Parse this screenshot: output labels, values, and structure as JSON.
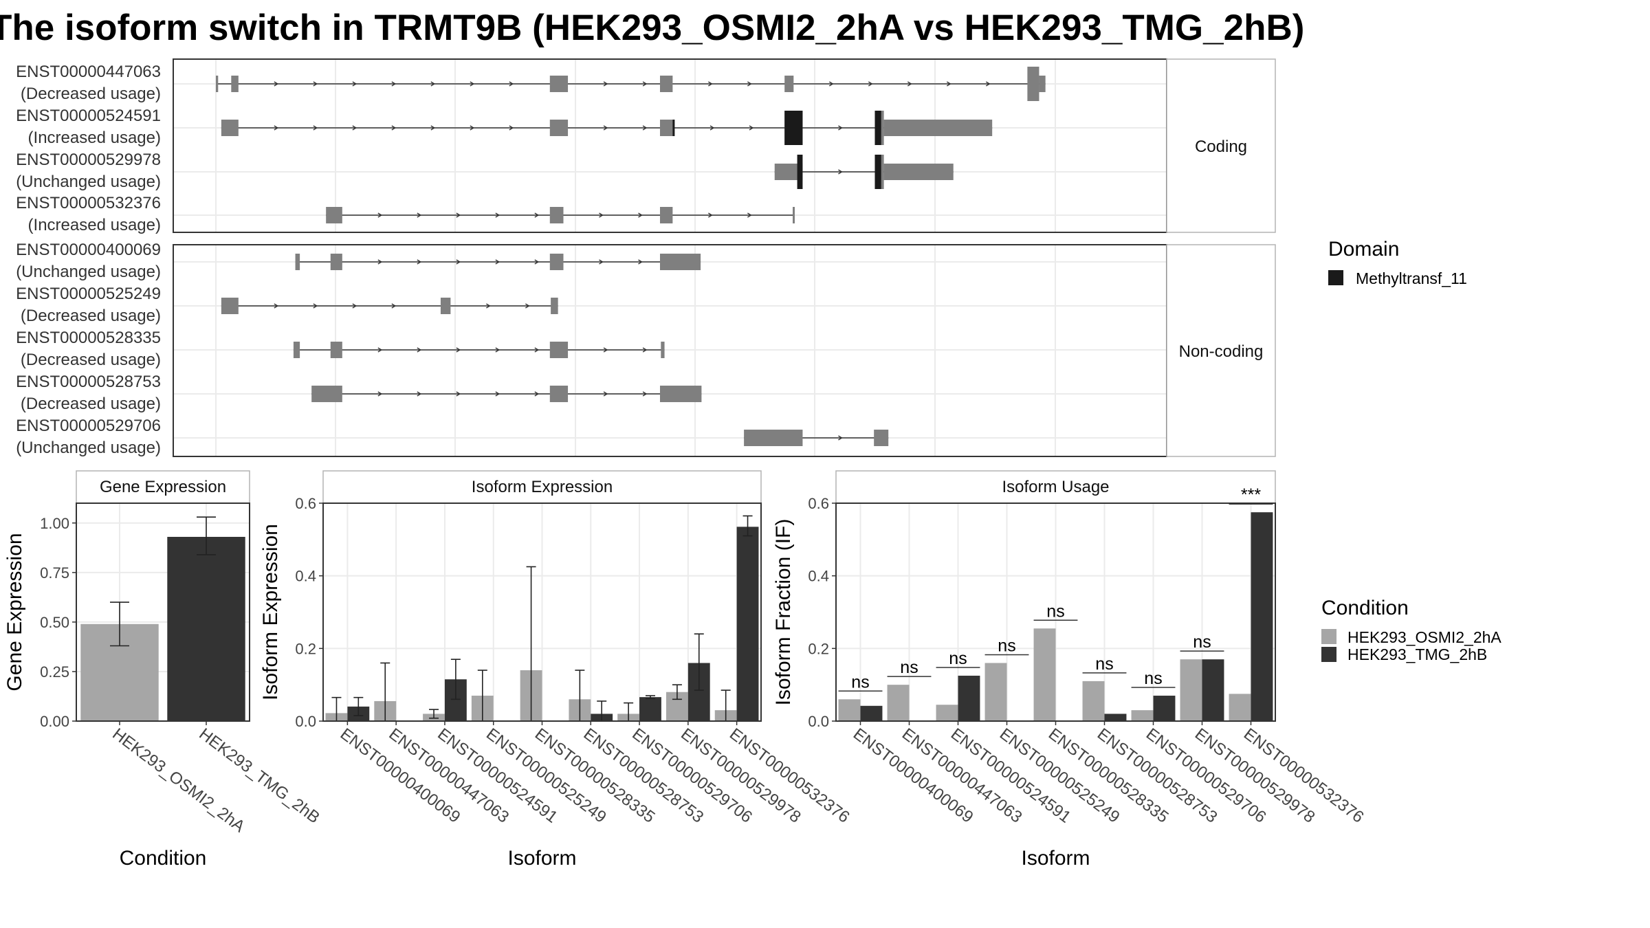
{
  "title": "The isoform switch in TRMT9B (HEK293_OSMI2_2hA vs HEK293_TMG_2hB)",
  "colors": {
    "exon": "#7f7f7f",
    "domain": "#1a1a1a",
    "cond_a": "#a6a6a6",
    "cond_b": "#333333",
    "grid": "#ebebeb",
    "strip_border": "#b3b3b3",
    "panel_border": "#333333"
  },
  "structure": {
    "genome_range": [
      0,
      100
    ],
    "groups": [
      {
        "label": "Coding",
        "transcripts": [
          {
            "id": "ENST00000447063",
            "usage": "(Decreased usage)",
            "exons": [
              [
                0,
                0.25
              ],
              [
                1.7,
                2.5
              ],
              [
                37,
                39
              ],
              [
                49.2,
                50.6
              ],
              [
                63,
                64
              ],
              [
                89.9,
                91.2
              ],
              [
                91.2,
                91.9
              ]
            ],
            "domains": [],
            "thick": [
              [
                89.9,
                91.2
              ]
            ]
          },
          {
            "id": "ENST00000524591",
            "usage": "(Increased usage)",
            "exons": [
              [
                0.6,
                2.5
              ],
              [
                37,
                39
              ],
              [
                49.2,
                50.8
              ],
              [
                63,
                65
              ],
              [
                73,
                74
              ],
              [
                74,
                86
              ]
            ],
            "domains": [
              [
                50.6,
                50.8
              ],
              [
                63,
                65
              ],
              [
                73,
                73.7
              ]
            ],
            "thick": [
              [
                63,
                65
              ],
              [
                73,
                74
              ]
            ]
          },
          {
            "id": "ENST00000529978",
            "usage": "(Unchanged usage)",
            "exons": [
              [
                61.9,
                65
              ],
              [
                73,
                74
              ],
              [
                74,
                81.7
              ]
            ],
            "domains": [
              [
                64.4,
                65
              ],
              [
                73,
                73.7
              ]
            ],
            "thick": [
              [
                64.2,
                65
              ],
              [
                73,
                74
              ]
            ]
          },
          {
            "id": "ENST00000532376",
            "usage": "(Increased usage)",
            "exons": [
              [
                12.2,
                14
              ],
              [
                37,
                38.5
              ],
              [
                49.2,
                50.6
              ],
              [
                63.9,
                64.1
              ]
            ],
            "domains": [],
            "thick": []
          }
        ]
      },
      {
        "label": "Non-coding",
        "transcripts": [
          {
            "id": "ENST00000400069",
            "usage": "(Unchanged usage)",
            "exons": [
              [
                8.8,
                9.3
              ],
              [
                12.7,
                14
              ],
              [
                37,
                38.5
              ],
              [
                49.2,
                53.7
              ]
            ],
            "domains": [],
            "thick": []
          },
          {
            "id": "ENST00000525249",
            "usage": "(Decreased usage)",
            "exons": [
              [
                0.6,
                2.5
              ],
              [
                24.9,
                26
              ],
              [
                37.1,
                37.9
              ]
            ],
            "domains": [],
            "thick": []
          },
          {
            "id": "ENST00000528335",
            "usage": "(Decreased usage)",
            "exons": [
              [
                8.6,
                9.3
              ],
              [
                12.7,
                14
              ],
              [
                37,
                39
              ],
              [
                49.3,
                49.7
              ]
            ],
            "domains": [],
            "thick": []
          },
          {
            "id": "ENST00000528753",
            "usage": "(Decreased usage)",
            "exons": [
              [
                10.6,
                14
              ],
              [
                37,
                39
              ],
              [
                49.2,
                53.8
              ]
            ],
            "domains": [],
            "thick": []
          },
          {
            "id": "ENST00000529706",
            "usage": "(Unchanged usage)",
            "exons": [
              [
                58.5,
                65
              ],
              [
                72.9,
                74.5
              ]
            ],
            "domains": [],
            "thick": []
          }
        ]
      }
    ]
  },
  "legend_domain": {
    "title": "Domain",
    "items": [
      "Methyltransf_11"
    ]
  },
  "legend_condition": {
    "title": "Condition",
    "items": [
      "HEK293_OSMI2_2hA",
      "HEK293_TMG_2hB"
    ]
  },
  "chart_data": [
    {
      "type": "bar",
      "title": "Gene Expression",
      "xlabel": "Condition",
      "ylabel": "Gene Expression",
      "ylim": [
        0,
        1.1
      ],
      "yticks": [
        "0.00",
        "0.25",
        "0.50",
        "0.75",
        "1.00"
      ],
      "categories": [
        "HEK293_OSMI2_2hA",
        "HEK293_TMG_2hB"
      ],
      "values": [
        0.49,
        0.93
      ],
      "err": [
        [
          0.38,
          0.6
        ],
        [
          0.84,
          1.03
        ]
      ]
    },
    {
      "type": "bar",
      "title": "Isoform Expression",
      "xlabel": "Isoform",
      "ylabel": "Isoform Expression",
      "ylim": [
        0,
        0.6
      ],
      "yticks": [
        "0.0",
        "0.2",
        "0.4",
        "0.6"
      ],
      "categories": [
        "ENST00000400069",
        "ENST00000447063",
        "ENST00000524591",
        "ENST00000525249",
        "ENST00000528335",
        "ENST00000528753",
        "ENST00000529706",
        "ENST00000529978",
        "ENST00000532376"
      ],
      "series": [
        {
          "name": "HEK293_OSMI2_2hA",
          "values": [
            0.022,
            0.055,
            0.02,
            0.07,
            0.14,
            0.06,
            0.02,
            0.08,
            0.03
          ],
          "err": [
            [
              0,
              0.065
            ],
            [
              0,
              0.16
            ],
            [
              0.008,
              0.032
            ],
            [
              0,
              0.14
            ],
            [
              0,
              0.425
            ],
            [
              0,
              0.14
            ],
            [
              0,
              0.05
            ],
            [
              0.06,
              0.1
            ],
            [
              0,
              0.085
            ]
          ]
        },
        {
          "name": "HEK293_TMG_2hB",
          "values": [
            0.04,
            0.0,
            0.115,
            0.0,
            0.0,
            0.02,
            0.066,
            0.16,
            0.535
          ],
          "err": [
            [
              0.015,
              0.065
            ],
            [
              0,
              0
            ],
            [
              0.06,
              0.17
            ],
            [
              0,
              0
            ],
            [
              0,
              0
            ],
            [
              0,
              0.055
            ],
            [
              0.062,
              0.07
            ],
            [
              0.085,
              0.24
            ],
            [
              0.51,
              0.565
            ]
          ]
        }
      ]
    },
    {
      "type": "bar",
      "title": "Isoform Usage",
      "xlabel": "Isoform",
      "ylabel": "Isoform Fraction (IF)",
      "ylim": [
        0,
        0.6
      ],
      "yticks": [
        "0.0",
        "0.2",
        "0.4",
        "0.6"
      ],
      "categories": [
        "ENST00000400069",
        "ENST00000447063",
        "ENST00000524591",
        "ENST00000525249",
        "ENST00000528335",
        "ENST00000528753",
        "ENST00000529706",
        "ENST00000529978",
        "ENST00000532376"
      ],
      "series": [
        {
          "name": "HEK293_OSMI2_2hA",
          "values": [
            0.06,
            0.1,
            0.045,
            0.16,
            0.255,
            0.11,
            0.03,
            0.17,
            0.075
          ]
        },
        {
          "name": "HEK293_TMG_2hB",
          "values": [
            0.042,
            0.0,
            0.125,
            0.0,
            0.0,
            0.02,
            0.07,
            0.17,
            0.575
          ]
        }
      ],
      "significance": [
        "ns",
        "ns",
        "ns",
        "ns",
        "ns",
        "ns",
        "ns",
        "ns",
        "***"
      ]
    }
  ]
}
